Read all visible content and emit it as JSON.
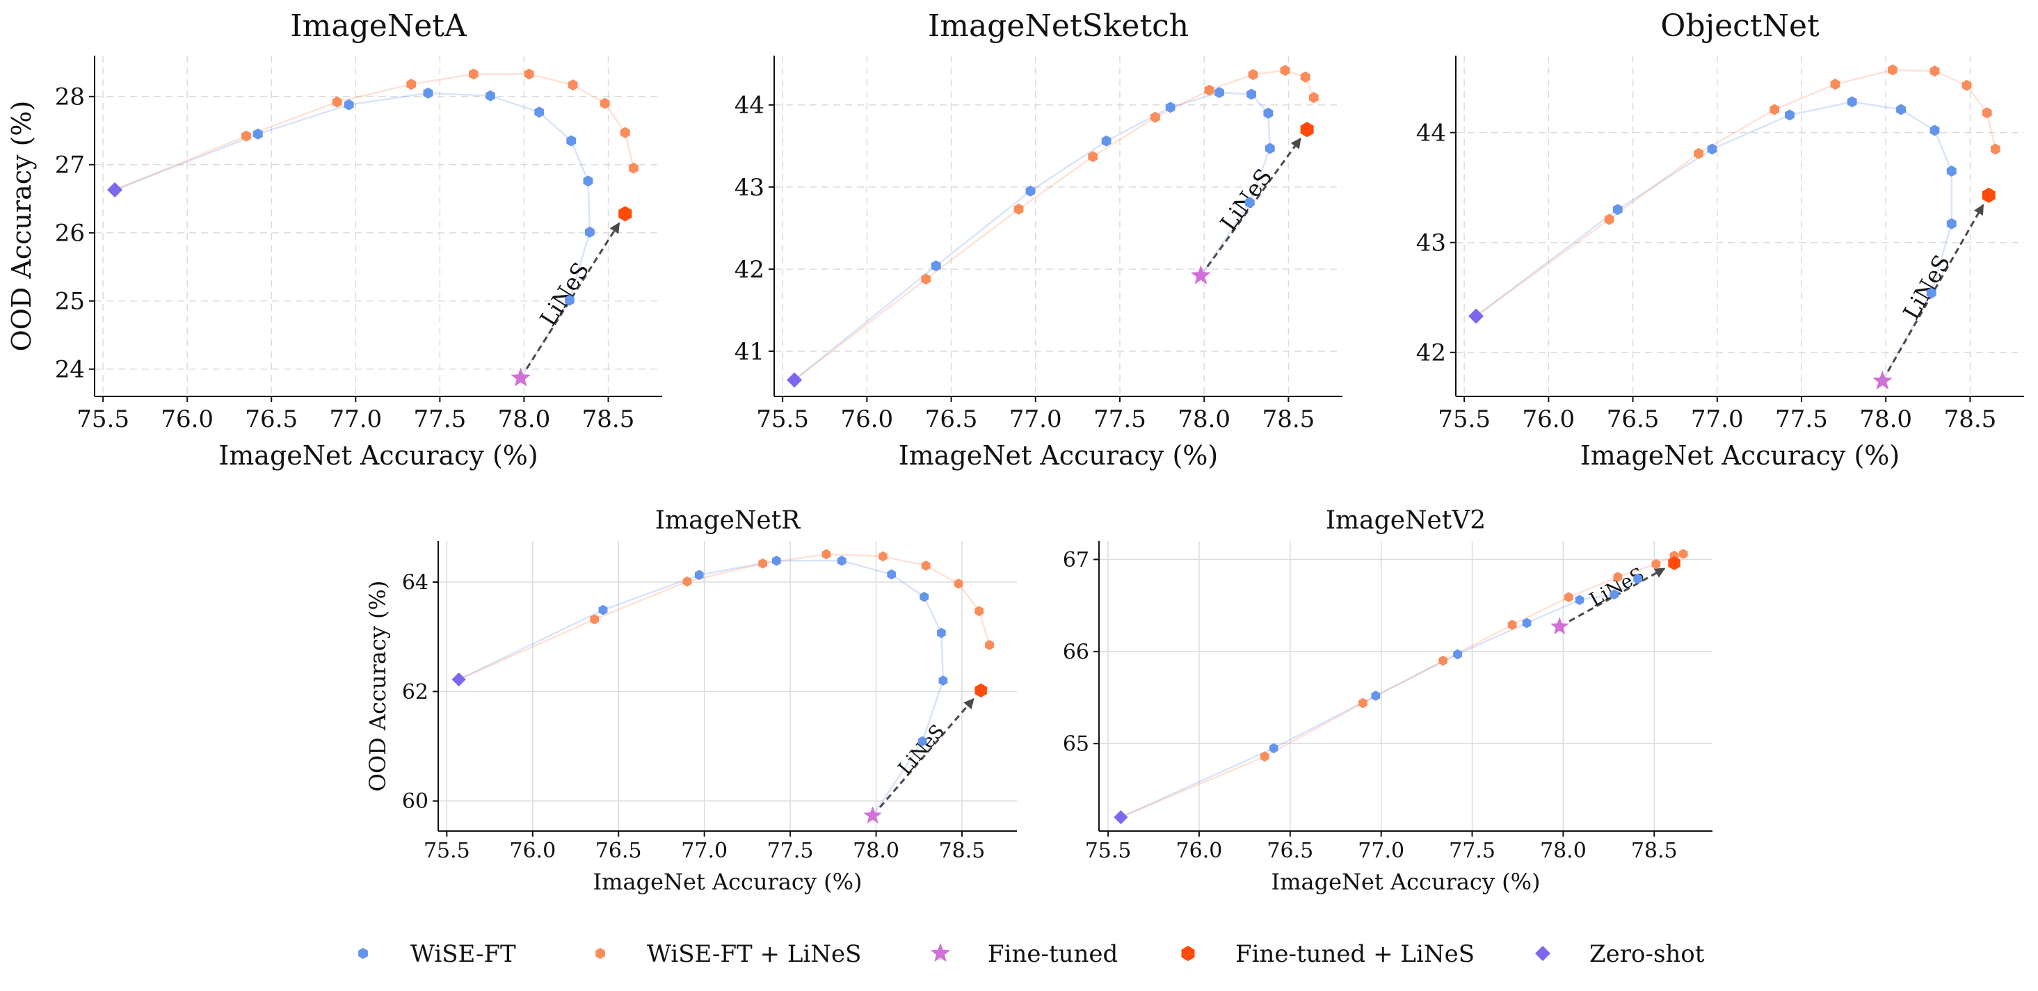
{
  "legend": {
    "wise": "WiSE-FT",
    "wise_lines": "WiSE-FT + LiNeS",
    "finetuned": "Fine-tuned",
    "finetuned_lines": "Fine-tuned + LiNeS",
    "zeroshot": "Zero-shot"
  },
  "colors": {
    "wise": "#6495ED",
    "wise_lines": "#FA8C5A",
    "finetuned": "#D070D8",
    "finetuned_lines": "#FF4A0A",
    "zeroshot": "#7B68EE",
    "arrow": "#4a4a4a",
    "lines_label": "#666666"
  },
  "chart_data": [
    {
      "type": "scatter",
      "title": "ImageNetA",
      "xlabel": "ImageNet Accuracy (%)",
      "ylabel": "OOD Accuracy (%)",
      "xlim": [
        75.45,
        78.82
      ],
      "ylim": [
        23.6,
        28.6
      ],
      "xticks": [
        75.5,
        76.0,
        76.5,
        77.0,
        77.5,
        78.0,
        78.5
      ],
      "yticks": [
        24,
        25,
        26,
        27,
        28
      ],
      "grid": true,
      "annotation": "LiNeS",
      "series": [
        {
          "name": "WiSE-FT",
          "x": [
            76.42,
            76.96,
            77.43,
            77.8,
            78.09,
            78.28,
            78.38,
            78.39,
            78.27
          ],
          "y": [
            27.45,
            27.88,
            28.05,
            28.01,
            27.77,
            27.35,
            26.76,
            26.01,
            25.01
          ]
        },
        {
          "name": "WiSE-FT + LiNeS",
          "x": [
            76.35,
            76.89,
            77.33,
            77.7,
            78.03,
            78.29,
            78.48,
            78.6,
            78.65
          ],
          "y": [
            27.42,
            27.92,
            28.18,
            28.33,
            28.33,
            28.17,
            27.9,
            27.47,
            26.95
          ]
        },
        {
          "name": "Fine-tuned",
          "x": [
            77.98
          ],
          "y": [
            23.87
          ]
        },
        {
          "name": "Fine-tuned + LiNeS",
          "x": [
            78.6
          ],
          "y": [
            26.28
          ]
        },
        {
          "name": "Zero-shot",
          "x": [
            75.57
          ],
          "y": [
            26.63
          ]
        }
      ]
    },
    {
      "type": "scatter",
      "title": "ImageNetSketch",
      "xlabel": "ImageNet Accuracy (%)",
      "ylabel": "",
      "xlim": [
        75.45,
        78.82
      ],
      "ylim": [
        40.45,
        44.6
      ],
      "xticks": [
        75.5,
        76.0,
        76.5,
        77.0,
        77.5,
        78.0,
        78.5
      ],
      "yticks": [
        41,
        42,
        43,
        44
      ],
      "grid": true,
      "annotation": "LiNeS",
      "series": [
        {
          "name": "WiSE-FT",
          "x": [
            76.41,
            76.97,
            77.42,
            77.8,
            78.09,
            78.28,
            78.38,
            78.39,
            78.27
          ],
          "y": [
            42.04,
            42.95,
            43.56,
            43.97,
            44.15,
            44.13,
            43.9,
            43.47,
            42.81
          ]
        },
        {
          "name": "WiSE-FT + LiNeS",
          "x": [
            76.35,
            76.9,
            77.34,
            77.71,
            78.03,
            78.29,
            78.48,
            78.6,
            78.65
          ],
          "y": [
            41.88,
            42.73,
            43.37,
            43.85,
            44.18,
            44.37,
            44.42,
            44.34,
            44.09
          ]
        },
        {
          "name": "Fine-tuned",
          "x": [
            77.98
          ],
          "y": [
            41.92
          ]
        },
        {
          "name": "Fine-tuned + LiNeS",
          "x": [
            78.61
          ],
          "y": [
            43.7
          ]
        },
        {
          "name": "Zero-shot",
          "x": [
            75.57
          ],
          "y": [
            40.65
          ]
        }
      ]
    },
    {
      "type": "scatter",
      "title": "ObjectNet",
      "xlabel": "ImageNet Accuracy (%)",
      "ylabel": "",
      "xlim": [
        75.45,
        78.82
      ],
      "ylim": [
        41.6,
        44.7
      ],
      "xticks": [
        75.5,
        76.0,
        76.5,
        77.0,
        77.5,
        78.0,
        78.5
      ],
      "yticks": [
        42,
        43,
        44
      ],
      "grid": true,
      "annotation": "LiNeS",
      "series": [
        {
          "name": "WiSE-FT",
          "x": [
            76.41,
            76.97,
            77.43,
            77.8,
            78.09,
            78.29,
            78.39,
            78.39,
            78.27
          ],
          "y": [
            43.3,
            43.85,
            44.16,
            44.28,
            44.21,
            44.02,
            43.65,
            43.17,
            42.54
          ]
        },
        {
          "name": "WiSE-FT + LiNeS",
          "x": [
            76.36,
            76.89,
            77.34,
            77.7,
            78.04,
            78.29,
            78.48,
            78.6,
            78.65
          ],
          "y": [
            43.21,
            43.81,
            44.21,
            44.44,
            44.57,
            44.56,
            44.43,
            44.18,
            43.85
          ]
        },
        {
          "name": "Fine-tuned",
          "x": [
            77.98
          ],
          "y": [
            41.74
          ]
        },
        {
          "name": "Fine-tuned + LiNeS",
          "x": [
            78.61
          ],
          "y": [
            43.43
          ]
        },
        {
          "name": "Zero-shot",
          "x": [
            75.57
          ],
          "y": [
            42.33
          ]
        }
      ]
    },
    {
      "type": "scatter",
      "title": "ImageNetR",
      "xlabel": "ImageNet Accuracy (%)",
      "ylabel": "OOD Accuracy (%)",
      "xlim": [
        75.45,
        78.82
      ],
      "ylim": [
        59.45,
        64.75
      ],
      "xticks": [
        75.5,
        76.0,
        76.5,
        77.0,
        77.5,
        78.0,
        78.5
      ],
      "yticks": [
        60,
        62,
        64
      ],
      "grid": true,
      "annotation": "LiNeS",
      "series": [
        {
          "name": "WiSE-FT",
          "x": [
            76.41,
            76.97,
            77.42,
            77.8,
            78.09,
            78.28,
            78.38,
            78.39,
            78.27
          ],
          "y": [
            63.49,
            64.13,
            64.39,
            64.39,
            64.14,
            63.73,
            63.07,
            62.2,
            61.09
          ]
        },
        {
          "name": "WiSE-FT + LiNeS",
          "x": [
            76.36,
            76.9,
            77.34,
            77.71,
            78.04,
            78.29,
            78.48,
            78.6,
            78.66
          ],
          "y": [
            63.32,
            64.01,
            64.34,
            64.51,
            64.47,
            64.3,
            63.97,
            63.47,
            62.85
          ]
        },
        {
          "name": "Fine-tuned",
          "x": [
            77.98
          ],
          "y": [
            59.73
          ]
        },
        {
          "name": "Fine-tuned + LiNeS",
          "x": [
            78.61
          ],
          "y": [
            62.02
          ]
        },
        {
          "name": "Zero-shot",
          "x": [
            75.57
          ],
          "y": [
            62.22
          ]
        }
      ]
    },
    {
      "type": "scatter",
      "title": "ImageNetV2",
      "xlabel": "ImageNet Accuracy (%)",
      "ylabel": "",
      "xlim": [
        75.45,
        78.82
      ],
      "ylim": [
        64.05,
        67.2
      ],
      "xticks": [
        75.5,
        76.0,
        76.5,
        77.0,
        77.5,
        78.0,
        78.5
      ],
      "yticks": [
        65,
        66,
        67
      ],
      "grid": true,
      "annotation": "LiNeS",
      "series": [
        {
          "name": "WiSE-FT",
          "x": [
            76.41,
            76.97,
            77.42,
            77.8,
            78.09,
            78.28,
            78.41
          ],
          "y": [
            64.95,
            65.52,
            65.97,
            66.31,
            66.56,
            66.62,
            66.79
          ]
        },
        {
          "name": "WiSE-FT + LiNeS",
          "x": [
            76.36,
            76.9,
            77.34,
            77.72,
            78.03,
            78.3,
            78.51,
            78.61,
            78.66
          ],
          "y": [
            64.86,
            65.44,
            65.9,
            66.29,
            66.59,
            66.81,
            66.95,
            67.04,
            67.06
          ]
        },
        {
          "name": "Fine-tuned",
          "x": [
            77.98
          ],
          "y": [
            66.27
          ]
        },
        {
          "name": "Fine-tuned + LiNeS",
          "x": [
            78.61
          ],
          "y": [
            66.96
          ]
        },
        {
          "name": "Zero-shot",
          "x": [
            75.57
          ],
          "y": [
            64.2
          ]
        }
      ]
    }
  ]
}
